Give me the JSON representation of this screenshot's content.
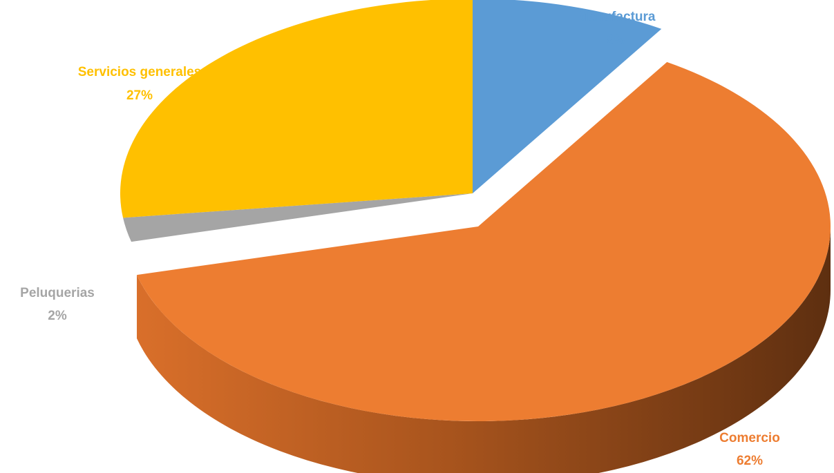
{
  "chart_data": {
    "type": "pie",
    "style": "3d-exploded-perspective",
    "title": "",
    "slices": [
      {
        "label": "Manufactura",
        "value": 9,
        "value_label": "9%",
        "color": "#5B9BD5"
      },
      {
        "label": "Comercio",
        "value": 62,
        "value_label": "62%",
        "color": "#ED7D31"
      },
      {
        "label": "Peluquerias",
        "value": 2,
        "value_label": "2%",
        "color": "#A5A5A5"
      },
      {
        "label": "Servicios generales",
        "value": 27,
        "value_label": "27%",
        "color": "#FFC000"
      }
    ],
    "data_labels": "outside, name and percentage, colored like slice",
    "legend": "none"
  }
}
